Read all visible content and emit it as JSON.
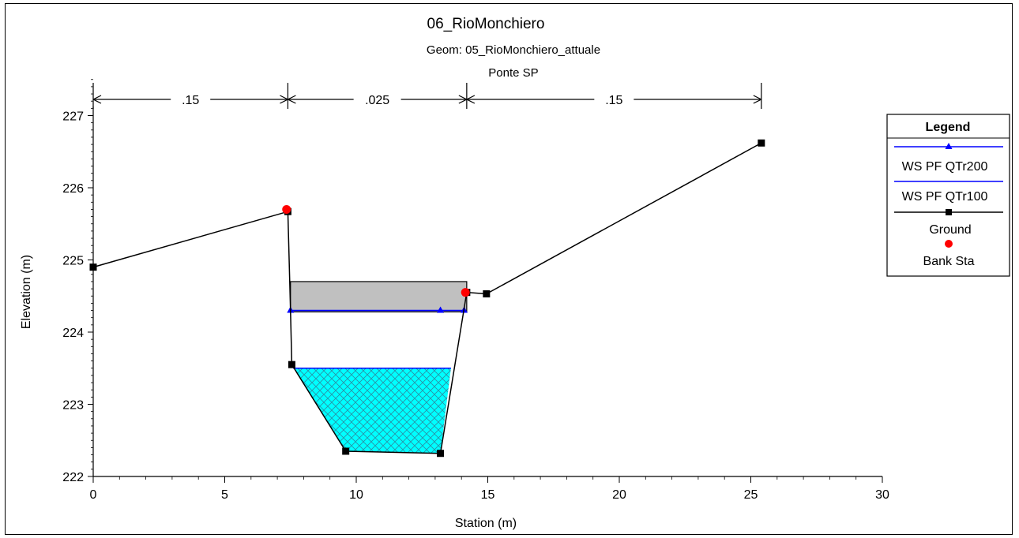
{
  "chart_data": {
    "type": "line",
    "title": "06_RioMonchiero",
    "subtitle_1": "Geom: 05_RioMonchiero_attuale",
    "subtitle_2": "Ponte SP",
    "xlabel": "Station (m)",
    "ylabel": "Elevation (m)",
    "xlim": [
      0,
      30
    ],
    "ylim": [
      222,
      227.5
    ],
    "x_ticks": [
      "0",
      "5",
      "10",
      "15",
      "20",
      "25",
      "30"
    ],
    "y_ticks": [
      "222",
      "223",
      "224",
      "225",
      "226",
      "227"
    ],
    "manning_n": [
      {
        "label": ".15",
        "from": 0,
        "to": 7.4
      },
      {
        "label": ".025",
        "from": 7.4,
        "to": 14.2
      },
      {
        "label": ".15",
        "from": 14.2,
        "to": 25.4
      }
    ],
    "ground": {
      "name": "Ground",
      "color": "#000000",
      "x": [
        0,
        7.4,
        7.5,
        7.55,
        9.6,
        13.2,
        14.2,
        14.95,
        25.4
      ],
      "y": [
        224.9,
        225.67,
        224.3,
        223.55,
        222.35,
        222.32,
        224.55,
        224.53,
        226.62
      ]
    },
    "bank_stations": {
      "name": "Bank Sta",
      "color": "#ff0000",
      "x": [
        7.35,
        14.15
      ],
      "y": [
        225.7,
        224.55
      ]
    },
    "ws_qtr200": {
      "name": "WS PF QTr200",
      "color": "#0000ff",
      "elevation": 224.3,
      "x_from": 7.5,
      "x_to": 14.1,
      "marker_x": [
        7.5,
        13.2,
        14.1
      ]
    },
    "ws_qtr100": {
      "name": "WS PF QTr100",
      "color": "#0000ff",
      "elevation": 223.5,
      "x_from": 7.6,
      "x_to": 13.6
    },
    "bridge_deck": {
      "x_from": 7.5,
      "x_to": 14.2,
      "low_chord": 224.28,
      "high_chord": 224.7,
      "color": "#c0c0c0"
    },
    "fill_color": "#00ffff",
    "legend": {
      "title": "Legend",
      "position": "right",
      "entries": [
        "WS PF QTr200",
        "WS PF QTr100",
        "Ground",
        "Bank Sta"
      ]
    }
  }
}
